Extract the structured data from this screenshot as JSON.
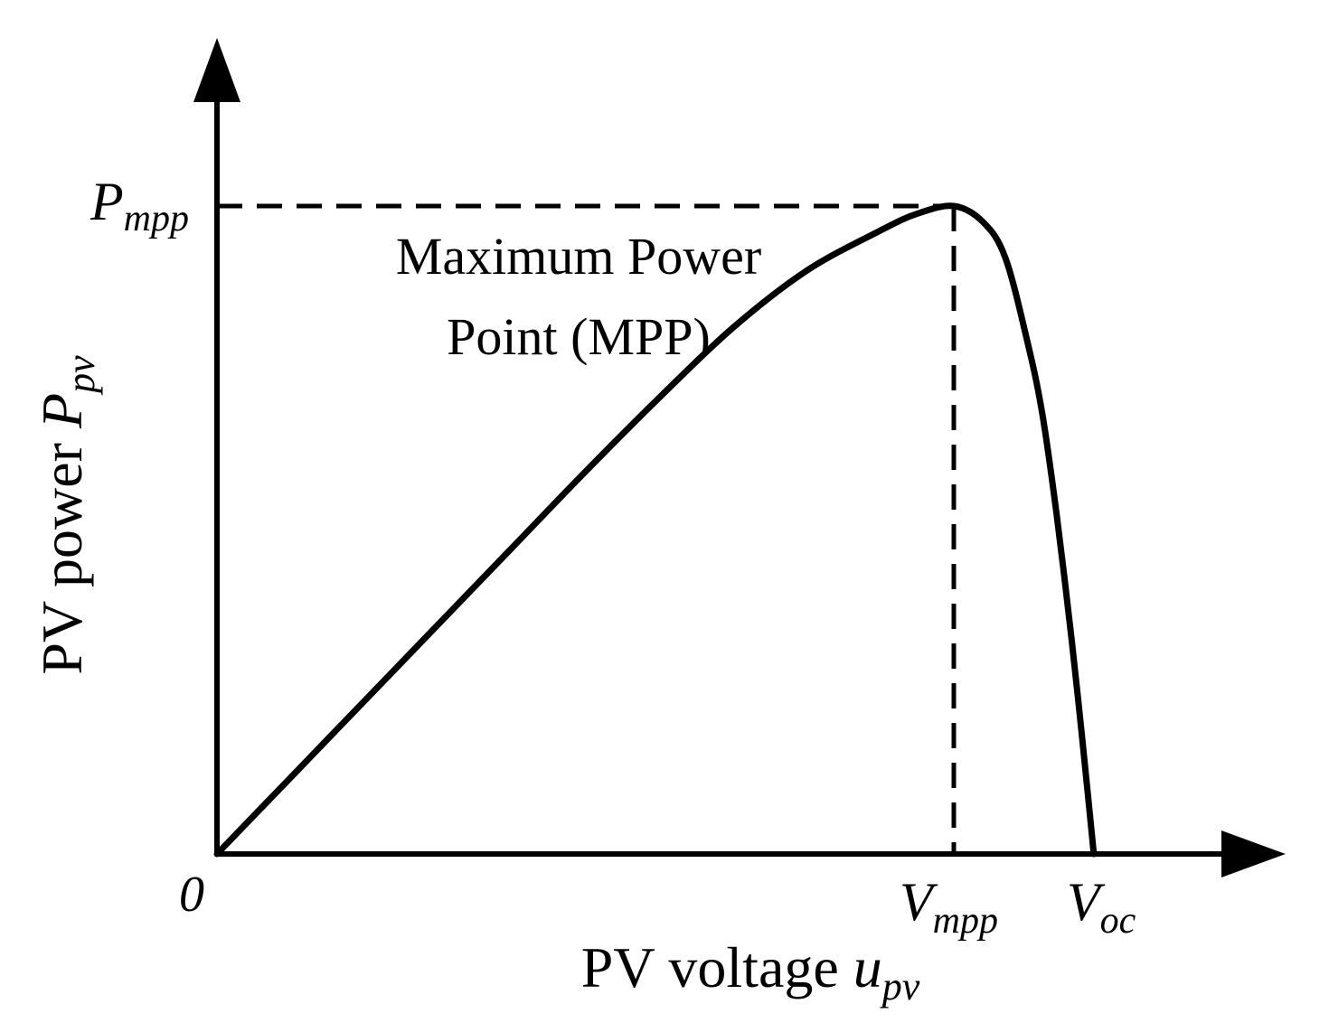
{
  "chart_data": {
    "type": "line",
    "title": "",
    "xlabel": {
      "main": "PV voltage ",
      "symbol": "u",
      "subscript": "pv"
    },
    "ylabel": {
      "main": "PV power ",
      "symbol": "P",
      "subscript": "pv"
    },
    "origin_label": "0",
    "annotation": {
      "line1": "Maximum Power",
      "line2": "Point (MPP)"
    },
    "ticks": {
      "x_vmpp": {
        "symbol": "V",
        "subscript": "mpp"
      },
      "x_voc": {
        "symbol": "V",
        "subscript": "oc"
      },
      "y_pmpp": {
        "symbol": "P",
        "subscript": "mpp"
      }
    },
    "xlim": [
      0,
      1.45
    ],
    "ylim": [
      0,
      1.0
    ],
    "mpp": {
      "x": 1.0,
      "y": 1.0
    },
    "voc": 1.19,
    "series": [
      {
        "values": [
          [
            0.0,
            0.0
          ],
          [
            0.1,
            0.118
          ],
          [
            0.2,
            0.236
          ],
          [
            0.3,
            0.354
          ],
          [
            0.4,
            0.472
          ],
          [
            0.5,
            0.59
          ],
          [
            0.6,
            0.704
          ],
          [
            0.7,
            0.812
          ],
          [
            0.8,
            0.9
          ],
          [
            0.9,
            0.962
          ],
          [
            0.95,
            0.988
          ],
          [
            1.0,
            1.0
          ],
          [
            1.04,
            0.975
          ],
          [
            1.07,
            0.92
          ],
          [
            1.1,
            0.79
          ],
          [
            1.12,
            0.68
          ],
          [
            1.14,
            0.52
          ],
          [
            1.16,
            0.33
          ],
          [
            1.175,
            0.17
          ],
          [
            1.19,
            0.0
          ]
        ]
      }
    ],
    "grid": false,
    "line_color": "#000000"
  }
}
